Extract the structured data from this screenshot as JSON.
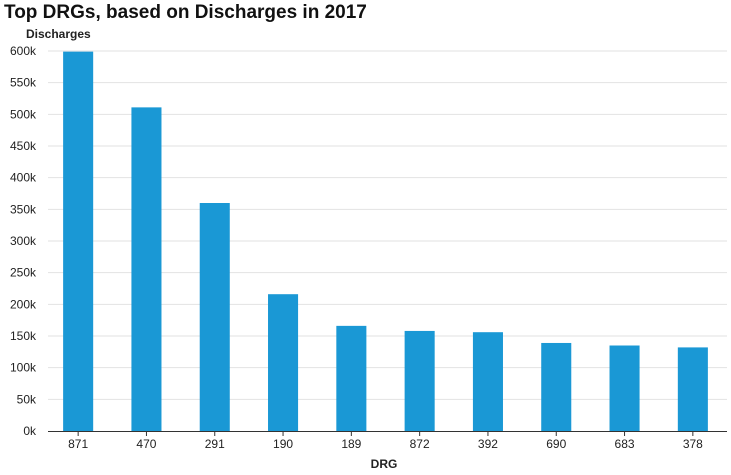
{
  "chart_data": {
    "type": "bar",
    "title": "Top DRGs, based on Discharges in 2017",
    "xlabel": "DRG",
    "ylabel": "Discharges",
    "categories": [
      "871",
      "470",
      "291",
      "190",
      "189",
      "872",
      "392",
      "690",
      "683",
      "378"
    ],
    "values": [
      599000,
      511000,
      360000,
      216000,
      166000,
      158000,
      156000,
      139000,
      135000,
      132000
    ],
    "ylim": [
      0,
      600000
    ],
    "yticks": [
      0,
      50000,
      100000,
      150000,
      200000,
      250000,
      300000,
      350000,
      400000,
      450000,
      500000,
      550000,
      600000
    ],
    "ytick_labels": [
      "0k",
      "50k",
      "100k",
      "150k",
      "200k",
      "250k",
      "300k",
      "350k",
      "400k",
      "450k",
      "500k",
      "550k",
      "600k"
    ],
    "grid": true,
    "bar_color": "#1a98d5",
    "grid_color": "#e2e2e2",
    "axis_color": "#333333"
  }
}
